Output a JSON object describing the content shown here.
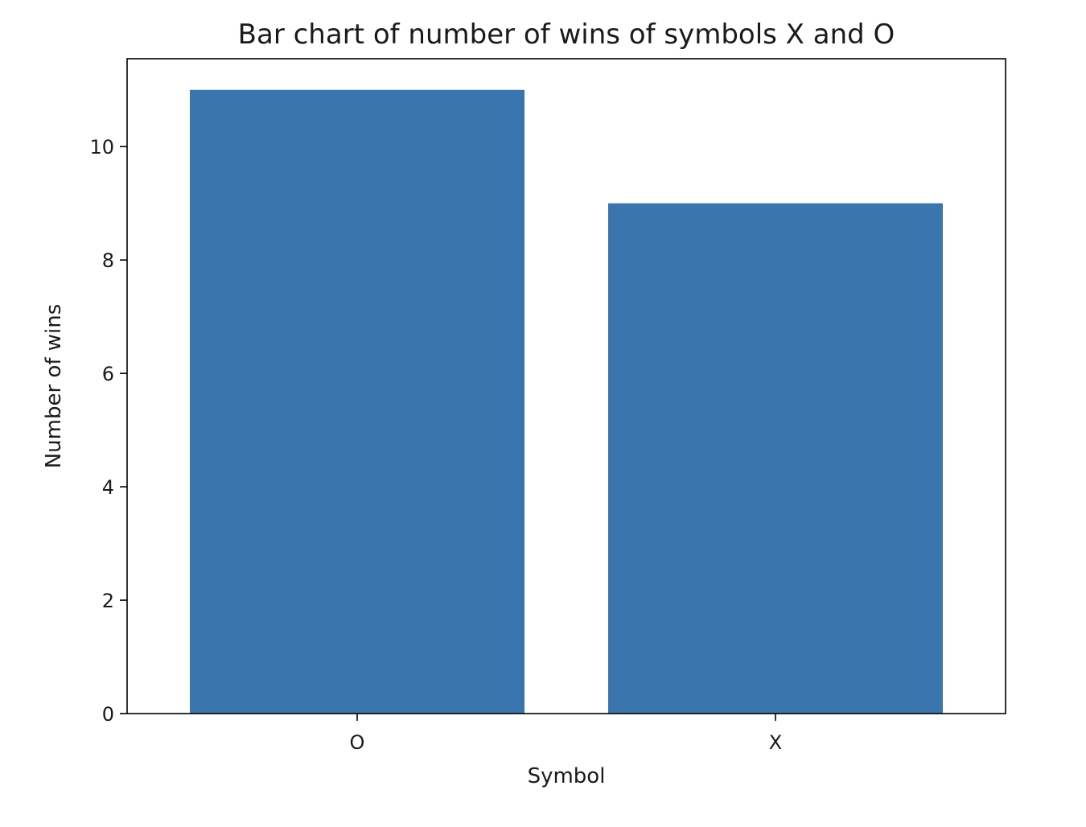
{
  "chart_data": {
    "type": "bar",
    "title": "Bar chart of number of wins of symbols X and O",
    "xlabel": "Symbol",
    "ylabel": "Number of wins",
    "categories": [
      "O",
      "X"
    ],
    "values": [
      11,
      9
    ],
    "ylim": [
      0,
      11.55
    ],
    "yticks": [
      0,
      2,
      4,
      6,
      8,
      10
    ],
    "ytick_labels": [
      "0",
      "2",
      "4",
      "6",
      "8",
      "10"
    ],
    "bar_color": "#3a75ae",
    "grid": false,
    "legend": "none"
  }
}
